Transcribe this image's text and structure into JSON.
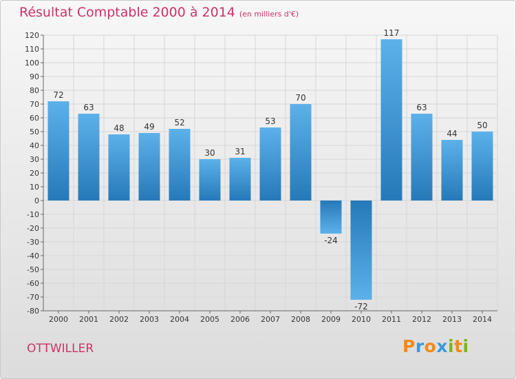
{
  "title": "Résultat Comptable 2000 à 2014",
  "subtitle": "(en milliers d'€)",
  "commune": "OTTWILLER",
  "logo": {
    "text": "Proxiti",
    "letters": [
      "P",
      "r",
      "o",
      "x",
      "i",
      "t",
      "i"
    ],
    "colors": [
      "#f08a1c",
      "#3a9ad9",
      "#f08a1c",
      "#3a9ad9",
      "#7ab51d",
      "#f08a1c",
      "#7ab51d"
    ]
  },
  "colors": {
    "title": "#cc3366",
    "bar_light": "#5db1ea",
    "bar_dark": "#2679b8",
    "grid": "#d6d6d6"
  },
  "chart_data": {
    "type": "bar",
    "title": "Résultat Comptable 2000 à 2014",
    "subtitle": "(en milliers d'€)",
    "xlabel": "",
    "ylabel": "",
    "categories": [
      "2000",
      "2001",
      "2002",
      "2003",
      "2004",
      "2005",
      "2006",
      "2007",
      "2008",
      "2009",
      "2010",
      "2011",
      "2012",
      "2013",
      "2014"
    ],
    "values": [
      72,
      63,
      48,
      49,
      52,
      30,
      31,
      53,
      70,
      -24,
      -72,
      117,
      63,
      44,
      50
    ],
    "ylim": [
      -80,
      120
    ],
    "yticks": [
      120,
      110,
      100,
      90,
      80,
      70,
      60,
      50,
      40,
      30,
      20,
      10,
      0,
      -10,
      -20,
      -30,
      -40,
      -50,
      -60,
      -70,
      -80
    ],
    "grid": true,
    "legend": "none"
  }
}
